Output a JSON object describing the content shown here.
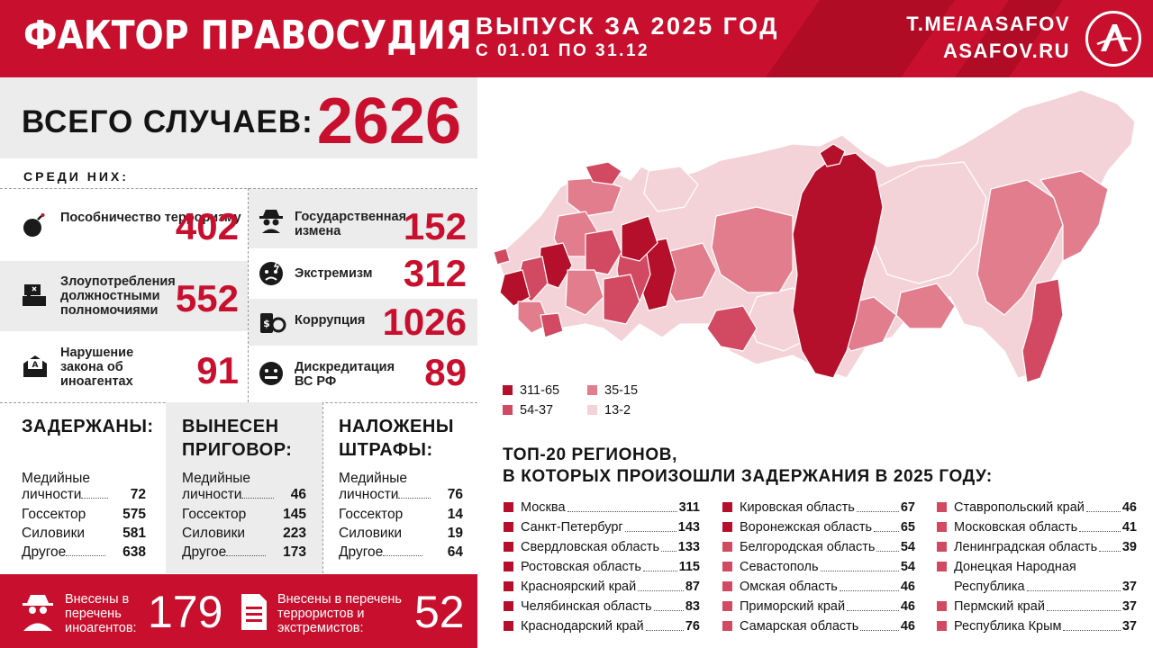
{
  "header": {
    "title": "ФАКТОР ПРАВОСУДИЯ",
    "issue": "ВЫПУСК ЗА 2025 ГОД",
    "period": "С 01.01 ПО 31.12",
    "link1": "T.ME/AASAFOV",
    "link2": "ASAFOV.RU",
    "logo_icon": "asafov-logo-icon"
  },
  "total": {
    "label": "ВСЕГО СЛУЧАЕВ:",
    "value": "2626"
  },
  "among_label": "СРЕДИ НИХ:",
  "categories": [
    {
      "label": "Пособничество терроризму",
      "value": "402",
      "icon": "bomb-icon"
    },
    {
      "label": "Государственная измена",
      "value": "152",
      "icon": "spy-icon"
    },
    {
      "label": "Злоупотребления должностными полномочиями",
      "value": "552",
      "icon": "briefcase-icon"
    },
    {
      "label": "Экстремизм",
      "value": "312",
      "icon": "extremism-icon"
    },
    {
      "label": "Коррупция",
      "value": "1026",
      "icon": "money-icon"
    },
    {
      "label": "Нарушение закона об иноагентах",
      "value": "91",
      "icon": "envelope-icon"
    },
    {
      "label": "Дискредитация ВС РФ",
      "value": "89",
      "icon": "silenced-face-icon"
    }
  ],
  "detained": {
    "heading": "ЗАДЕРЖАНЫ:",
    "rows": [
      {
        "label": "Медийные",
        "label2": "личности",
        "value": "72"
      },
      {
        "label": "Госсектор",
        "value": "575"
      },
      {
        "label": "Силовики",
        "value": "581"
      },
      {
        "label": "Другое",
        "value": "638"
      }
    ]
  },
  "sentenced": {
    "heading": "ВЫНЕСЕН ПРИГОВОР:",
    "rows": [
      {
        "label": "Медийные",
        "label2": "личности",
        "value": "46"
      },
      {
        "label": "Госсектор",
        "value": "145"
      },
      {
        "label": "Силовики",
        "value": "223"
      },
      {
        "label": "Другое",
        "value": "173"
      }
    ]
  },
  "fined": {
    "heading": "НАЛОЖЕНЫ ШТРАФЫ:",
    "rows": [
      {
        "label": "Медийные",
        "label2": "личности",
        "value": "76"
      },
      {
        "label": "Госсектор",
        "value": "14"
      },
      {
        "label": "Силовики",
        "value": "19"
      },
      {
        "label": "Другое",
        "value": "64"
      }
    ]
  },
  "bottom": {
    "foreign_agents_label": "Внесены в перечень иноагентов:",
    "foreign_agents_value": "179",
    "terrorists_label": "Внесены в перечень террористов и экстремистов:",
    "terrorists_value": "52"
  },
  "legend": [
    {
      "label": "311-65",
      "color": "#b5102b"
    },
    {
      "label": "35-15",
      "color": "#e27d8d"
    },
    {
      "label": "54-37",
      "color": "#d24a61"
    },
    {
      "label": "13-2",
      "color": "#f4d3d8"
    }
  ],
  "top20": {
    "title_line1": "ТОП-20 РЕГИОНОВ,",
    "title_line2": "В КОТОРЫХ ПРОИЗОШЛИ ЗАДЕРЖАНИЯ В 2025 ГОДУ:",
    "regions": [
      {
        "name": "Москва",
        "value": "311",
        "color": "#b5102b"
      },
      {
        "name": "Санкт-Петербург",
        "value": "143",
        "color": "#b5102b"
      },
      {
        "name": "Свердловская область",
        "value": "133",
        "color": "#b5102b"
      },
      {
        "name": "Ростовская область",
        "value": "115",
        "color": "#b5102b"
      },
      {
        "name": "Красноярский край",
        "value": "87",
        "color": "#b5102b"
      },
      {
        "name": "Челябинская область",
        "value": "83",
        "color": "#b5102b"
      },
      {
        "name": "Краснодарский край",
        "value": "76",
        "color": "#b5102b"
      },
      {
        "name": "Кировская область",
        "value": "67",
        "color": "#b5102b"
      },
      {
        "name": "Воронежская область",
        "value": "65",
        "color": "#b5102b"
      },
      {
        "name": "Белгородская область",
        "value": "54",
        "color": "#d24a61"
      },
      {
        "name": "Севастополь",
        "value": "54",
        "color": "#d24a61"
      },
      {
        "name": "Омская область",
        "value": "46",
        "color": "#d24a61"
      },
      {
        "name": "Приморский край",
        "value": "46",
        "color": "#d24a61"
      },
      {
        "name": "Самарская область",
        "value": "46",
        "color": "#d24a61"
      },
      {
        "name": "Ставропольский край",
        "value": "46",
        "color": "#d24a61"
      },
      {
        "name": "Московская область",
        "value": "41",
        "color": "#d24a61"
      },
      {
        "name": "Ленинградская область",
        "value": "39",
        "color": "#d24a61"
      },
      {
        "name": "Донецкая Народная Республика",
        "name1": "Донецкая Народная",
        "name2": "Республика",
        "value": "37",
        "color": "#d24a61"
      },
      {
        "name": "Пермский край",
        "value": "37",
        "color": "#d24a61"
      },
      {
        "name": "Республика Крым",
        "value": "37",
        "color": "#d24a61"
      }
    ]
  }
}
